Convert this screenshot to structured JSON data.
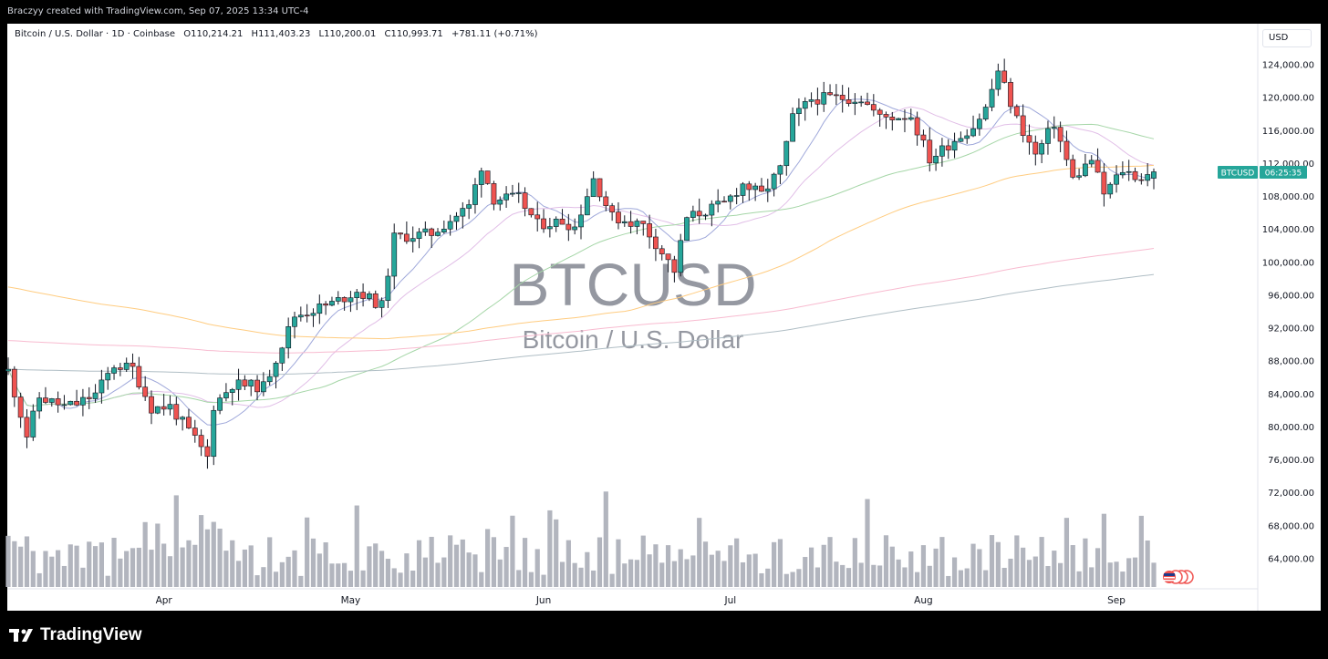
{
  "header": {
    "attribution": "Braczyy created with TradingView.com, Sep 07, 2025 13:34 UTC-4"
  },
  "legend": {
    "symbol": "Bitcoin / U.S. Dollar · 1D · Coinbase",
    "open": "O110,214.21",
    "high": "H111,403.23",
    "low": "L110,200.01",
    "close": "C110,993.71",
    "change": "+781.11 (+0.71%)"
  },
  "currency_button": "USD",
  "watermark": {
    "ticker": "BTCUSD",
    "name": "Bitcoin / U.S. Dollar"
  },
  "price_tag": {
    "ticker": "BTCUSD",
    "countdown": "06:25:35",
    "color": "#26a69a"
  },
  "brand": {
    "name": "TradingView"
  },
  "colors": {
    "up": "#26a69a",
    "down": "#ef5350",
    "volume": "#b2b5be"
  },
  "chart_data": {
    "type": "candlestick",
    "ylim": [
      60000,
      126000
    ],
    "y_ticks": [
      "124,000.00",
      "120,000.00",
      "116,000.00",
      "112,000.00",
      "108,000.00",
      "104,000.00",
      "100,000.00",
      "96,000.00",
      "92,000.00",
      "88,000.00",
      "84,000.00",
      "80,000.00",
      "76,000.00",
      "72,000.00",
      "68,000.00",
      "64,000.00"
    ],
    "x_ticks": [
      "Apr",
      "May",
      "Jun",
      "Jul",
      "Aug",
      "Sep"
    ],
    "current_price": 110993.71,
    "close_path": [
      {
        "date": "2025-03-07",
        "close": 86800
      },
      {
        "date": "2025-03-10",
        "close": 79000
      },
      {
        "date": "2025-03-12",
        "close": 83600
      },
      {
        "date": "2025-03-16",
        "close": 82500
      },
      {
        "date": "2025-03-18",
        "close": 82800
      },
      {
        "date": "2025-03-21",
        "close": 84000
      },
      {
        "date": "2025-03-24",
        "close": 87500
      },
      {
        "date": "2025-03-27",
        "close": 87100
      },
      {
        "date": "2025-03-30",
        "close": 82300
      },
      {
        "date": "2025-04-02",
        "close": 82500
      },
      {
        "date": "2025-04-06",
        "close": 78500
      },
      {
        "date": "2025-04-08",
        "close": 76300
      },
      {
        "date": "2025-04-09",
        "close": 82600
      },
      {
        "date": "2025-04-12",
        "close": 85200
      },
      {
        "date": "2025-04-17",
        "close": 84900
      },
      {
        "date": "2025-04-22",
        "close": 93500
      },
      {
        "date": "2025-04-28",
        "close": 95000
      },
      {
        "date": "2025-05-02",
        "close": 96500
      },
      {
        "date": "2025-05-06",
        "close": 94700
      },
      {
        "date": "2025-05-08",
        "close": 103000
      },
      {
        "date": "2025-05-14",
        "close": 103500
      },
      {
        "date": "2025-05-20",
        "close": 106800
      },
      {
        "date": "2025-05-22",
        "close": 111700
      },
      {
        "date": "2025-05-24",
        "close": 107700
      },
      {
        "date": "2025-05-28",
        "close": 107800
      },
      {
        "date": "2025-05-31",
        "close": 104600
      },
      {
        "date": "2025-06-04",
        "close": 105000
      },
      {
        "date": "2025-06-06",
        "close": 104300
      },
      {
        "date": "2025-06-09",
        "close": 110200
      },
      {
        "date": "2025-06-12",
        "close": 105500
      },
      {
        "date": "2025-06-17",
        "close": 104500
      },
      {
        "date": "2025-06-22",
        "close": 99000
      },
      {
        "date": "2025-06-24",
        "close": 105400
      },
      {
        "date": "2025-06-30",
        "close": 107100
      },
      {
        "date": "2025-07-03",
        "close": 109500
      },
      {
        "date": "2025-07-06",
        "close": 108200
      },
      {
        "date": "2025-07-09",
        "close": 111300
      },
      {
        "date": "2025-07-11",
        "close": 117500
      },
      {
        "date": "2025-07-14",
        "close": 119800
      },
      {
        "date": "2025-07-17",
        "close": 120000
      },
      {
        "date": "2025-07-22",
        "close": 119900
      },
      {
        "date": "2025-07-25",
        "close": 117600
      },
      {
        "date": "2025-07-30",
        "close": 117800
      },
      {
        "date": "2025-08-02",
        "close": 112500
      },
      {
        "date": "2025-08-06",
        "close": 114900
      },
      {
        "date": "2025-08-09",
        "close": 116500
      },
      {
        "date": "2025-08-11",
        "close": 118700
      },
      {
        "date": "2025-08-13",
        "close": 123300
      },
      {
        "date": "2025-08-16",
        "close": 117400
      },
      {
        "date": "2025-08-19",
        "close": 113000
      },
      {
        "date": "2025-08-22",
        "close": 116900
      },
      {
        "date": "2025-08-25",
        "close": 110100
      },
      {
        "date": "2025-08-28",
        "close": 112500
      },
      {
        "date": "2025-08-30",
        "close": 108300
      },
      {
        "date": "2025-09-02",
        "close": 111200
      },
      {
        "date": "2025-09-05",
        "close": 110200
      },
      {
        "date": "2025-09-07",
        "close": 110993.71
      }
    ]
  }
}
